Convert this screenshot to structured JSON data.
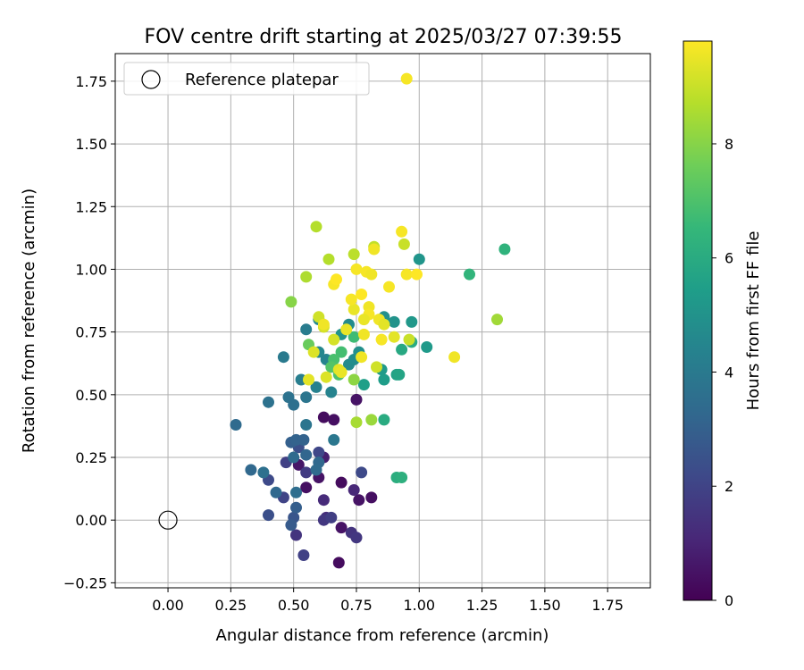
{
  "chart_data": {
    "type": "scatter",
    "title": "FOV centre drift starting at 2025/03/27 07:39:55",
    "xlabel": "Angular distance from reference (arcmin)",
    "ylabel": "Rotation from reference (arcmin)",
    "xlim": [
      -0.21,
      1.92
    ],
    "ylim": [
      -0.27,
      1.86
    ],
    "xticks": [
      "0.00",
      "0.25",
      "0.50",
      "0.75",
      "1.00",
      "1.25",
      "1.50",
      "1.75"
    ],
    "xtick_values": [
      0,
      0.25,
      0.5,
      0.75,
      1.0,
      1.25,
      1.5,
      1.75
    ],
    "yticks": [
      "−0.25",
      "0.00",
      "0.25",
      "0.50",
      "0.75",
      "1.00",
      "1.25",
      "1.50",
      "1.75"
    ],
    "ytick_values": [
      -0.25,
      0,
      0.25,
      0.5,
      0.75,
      1.0,
      1.25,
      1.5,
      1.75
    ],
    "grid": true,
    "legend": {
      "placement": "top-left",
      "entries": [
        "Reference platepar"
      ]
    },
    "reference_point": {
      "x": 0.0,
      "y": 0.0
    },
    "colorbar": {
      "label": "Hours from first FF file",
      "range": [
        0,
        9.8
      ],
      "ticks": [
        "0",
        "2",
        "4",
        "6",
        "8"
      ],
      "tick_values": [
        0,
        2,
        4,
        6,
        8
      ],
      "colormap": "viridis",
      "stops": [
        "#440154",
        "#482878",
        "#3e4989",
        "#31688e",
        "#26828e",
        "#1f9e89",
        "#35b779",
        "#6ece58",
        "#b5de2b",
        "#fde725"
      ]
    },
    "points": [
      [
        0.62,
        0.41,
        0.3
      ],
      [
        0.66,
        0.4,
        0.4
      ],
      [
        0.75,
        0.48,
        0.5
      ],
      [
        0.55,
        0.13,
        0.4
      ],
      [
        0.6,
        0.17,
        0.5
      ],
      [
        0.69,
        0.15,
        0.3
      ],
      [
        0.76,
        0.08,
        0.5
      ],
      [
        0.81,
        0.09,
        0.4
      ],
      [
        0.69,
        -0.03,
        0.5
      ],
      [
        0.68,
        -0.17,
        0.3
      ],
      [
        0.52,
        0.22,
        0.6
      ],
      [
        0.62,
        0.25,
        0.8
      ],
      [
        0.74,
        0.12,
        1.1
      ],
      [
        0.62,
        0.08,
        1.2
      ],
      [
        0.63,
        0.01,
        1.3
      ],
      [
        0.73,
        -0.05,
        1.5
      ],
      [
        0.75,
        -0.07,
        1.6
      ],
      [
        0.62,
        0.0,
        1.6
      ],
      [
        0.65,
        0.01,
        1.8
      ],
      [
        0.51,
        -0.06,
        1.5
      ],
      [
        0.54,
        -0.14,
        1.9
      ],
      [
        0.55,
        0.19,
        1.7
      ],
      [
        0.47,
        0.23,
        1.9
      ],
      [
        0.46,
        0.09,
        2.0
      ],
      [
        0.6,
        0.27,
        2.1
      ],
      [
        0.77,
        0.19,
        2.2
      ],
      [
        0.4,
        0.16,
        2.2
      ],
      [
        0.52,
        0.29,
        2.4
      ],
      [
        0.4,
        0.02,
        2.4
      ],
      [
        0.5,
        0.01,
        2.6
      ],
      [
        0.49,
        -0.02,
        2.8
      ],
      [
        0.51,
        0.05,
        2.9
      ],
      [
        0.49,
        0.31,
        3.0
      ],
      [
        0.51,
        0.32,
        3.1
      ],
      [
        0.54,
        0.32,
        3.1
      ],
      [
        0.55,
        0.26,
        3.2
      ],
      [
        0.6,
        0.23,
        3.3
      ],
      [
        0.59,
        0.2,
        3.4
      ],
      [
        0.5,
        0.25,
        3.4
      ],
      [
        0.27,
        0.38,
        3.4
      ],
      [
        0.33,
        0.2,
        3.3
      ],
      [
        0.43,
        0.11,
        3.3
      ],
      [
        0.51,
        0.11,
        3.5
      ],
      [
        0.38,
        0.19,
        3.6
      ],
      [
        0.48,
        0.49,
        3.7
      ],
      [
        0.5,
        0.46,
        3.6
      ],
      [
        0.4,
        0.47,
        3.7
      ],
      [
        0.55,
        0.38,
        3.8
      ],
      [
        0.55,
        0.49,
        3.8
      ],
      [
        0.66,
        0.32,
        3.9
      ],
      [
        0.46,
        0.65,
        4.0
      ],
      [
        0.55,
        0.76,
        4.1
      ],
      [
        0.53,
        0.56,
        4.2
      ],
      [
        0.59,
        0.53,
        4.3
      ],
      [
        0.65,
        0.51,
        4.4
      ],
      [
        0.63,
        0.64,
        4.4
      ],
      [
        0.6,
        0.67,
        4.5
      ],
      [
        0.6,
        0.8,
        4.6
      ],
      [
        0.72,
        0.78,
        4.7
      ],
      [
        0.72,
        0.62,
        4.7
      ],
      [
        0.74,
        0.64,
        4.8
      ],
      [
        0.76,
        0.67,
        4.9
      ],
      [
        0.69,
        0.74,
        5.0
      ],
      [
        0.86,
        0.81,
        4.9
      ],
      [
        0.9,
        0.79,
        5.0
      ],
      [
        1.0,
        1.04,
        5.1
      ],
      [
        0.97,
        0.79,
        5.2
      ],
      [
        1.03,
        0.69,
        5.3
      ],
      [
        0.85,
        0.6,
        5.3
      ],
      [
        0.86,
        0.56,
        5.4
      ],
      [
        0.78,
        0.54,
        5.5
      ],
      [
        0.91,
        0.58,
        5.6
      ],
      [
        0.92,
        0.58,
        5.7
      ],
      [
        0.93,
        0.68,
        5.9
      ],
      [
        0.97,
        0.71,
        6.0
      ],
      [
        0.86,
        0.4,
        6.0
      ],
      [
        0.91,
        0.17,
        6.1
      ],
      [
        0.93,
        0.17,
        6.2
      ],
      [
        1.34,
        1.08,
        6.3
      ],
      [
        1.2,
        0.98,
        6.4
      ],
      [
        0.74,
        0.73,
        6.7
      ],
      [
        0.69,
        0.67,
        6.8
      ],
      [
        0.66,
        0.64,
        6.9
      ],
      [
        0.68,
        0.58,
        7.0
      ],
      [
        0.65,
        0.61,
        7.1
      ],
      [
        0.56,
        0.7,
        7.5
      ],
      [
        0.49,
        0.87,
        8.0
      ],
      [
        0.74,
        0.56,
        8.1
      ],
      [
        0.81,
        0.4,
        8.3
      ],
      [
        0.75,
        0.39,
        8.5
      ],
      [
        0.55,
        0.97,
        8.6
      ],
      [
        0.59,
        1.17,
        8.7
      ],
      [
        0.64,
        1.04,
        8.7
      ],
      [
        0.74,
        1.06,
        8.8
      ],
      [
        0.82,
        1.09,
        8.9
      ],
      [
        0.94,
        1.1,
        9.0
      ],
      [
        0.96,
        0.72,
        9.0
      ],
      [
        0.83,
        0.61,
        9.1
      ],
      [
        0.6,
        0.81,
        9.1
      ],
      [
        0.62,
        0.77,
        9.2
      ],
      [
        0.66,
        0.72,
        9.2
      ],
      [
        0.58,
        0.67,
        9.3
      ],
      [
        0.63,
        0.57,
        9.3
      ],
      [
        0.68,
        0.6,
        9.4
      ],
      [
        0.56,
        0.56,
        9.4
      ],
      [
        0.71,
        0.76,
        9.5
      ],
      [
        0.74,
        0.84,
        9.5
      ],
      [
        0.78,
        0.74,
        9.6
      ],
      [
        0.8,
        0.85,
        9.6
      ],
      [
        0.84,
        0.8,
        9.6
      ],
      [
        0.88,
        0.93,
        9.7
      ],
      [
        0.93,
        1.15,
        9.7
      ],
      [
        0.95,
        1.76,
        9.7
      ],
      [
        1.31,
        0.8,
        8.4
      ],
      [
        1.14,
        0.65,
        9.6
      ],
      [
        0.75,
        1.0,
        9.7
      ],
      [
        0.79,
        0.99,
        9.7
      ],
      [
        0.81,
        0.98,
        9.6
      ],
      [
        0.82,
        1.08,
        9.6
      ],
      [
        0.95,
        0.98,
        9.7
      ],
      [
        0.99,
        0.98,
        9.8
      ],
      [
        0.77,
        0.9,
        9.8
      ],
      [
        0.73,
        0.88,
        9.7
      ],
      [
        0.8,
        0.82,
        9.7
      ],
      [
        0.85,
        0.72,
        9.7
      ],
      [
        0.77,
        0.65,
        9.6
      ],
      [
        0.69,
        0.59,
        9.5
      ],
      [
        0.66,
        0.94,
        9.7
      ],
      [
        0.67,
        0.96,
        9.8
      ],
      [
        0.78,
        0.8,
        9.5
      ],
      [
        0.86,
        0.78,
        9.4
      ],
      [
        0.9,
        0.73,
        9.4
      ],
      [
        0.62,
        0.78,
        9.6
      ]
    ]
  }
}
